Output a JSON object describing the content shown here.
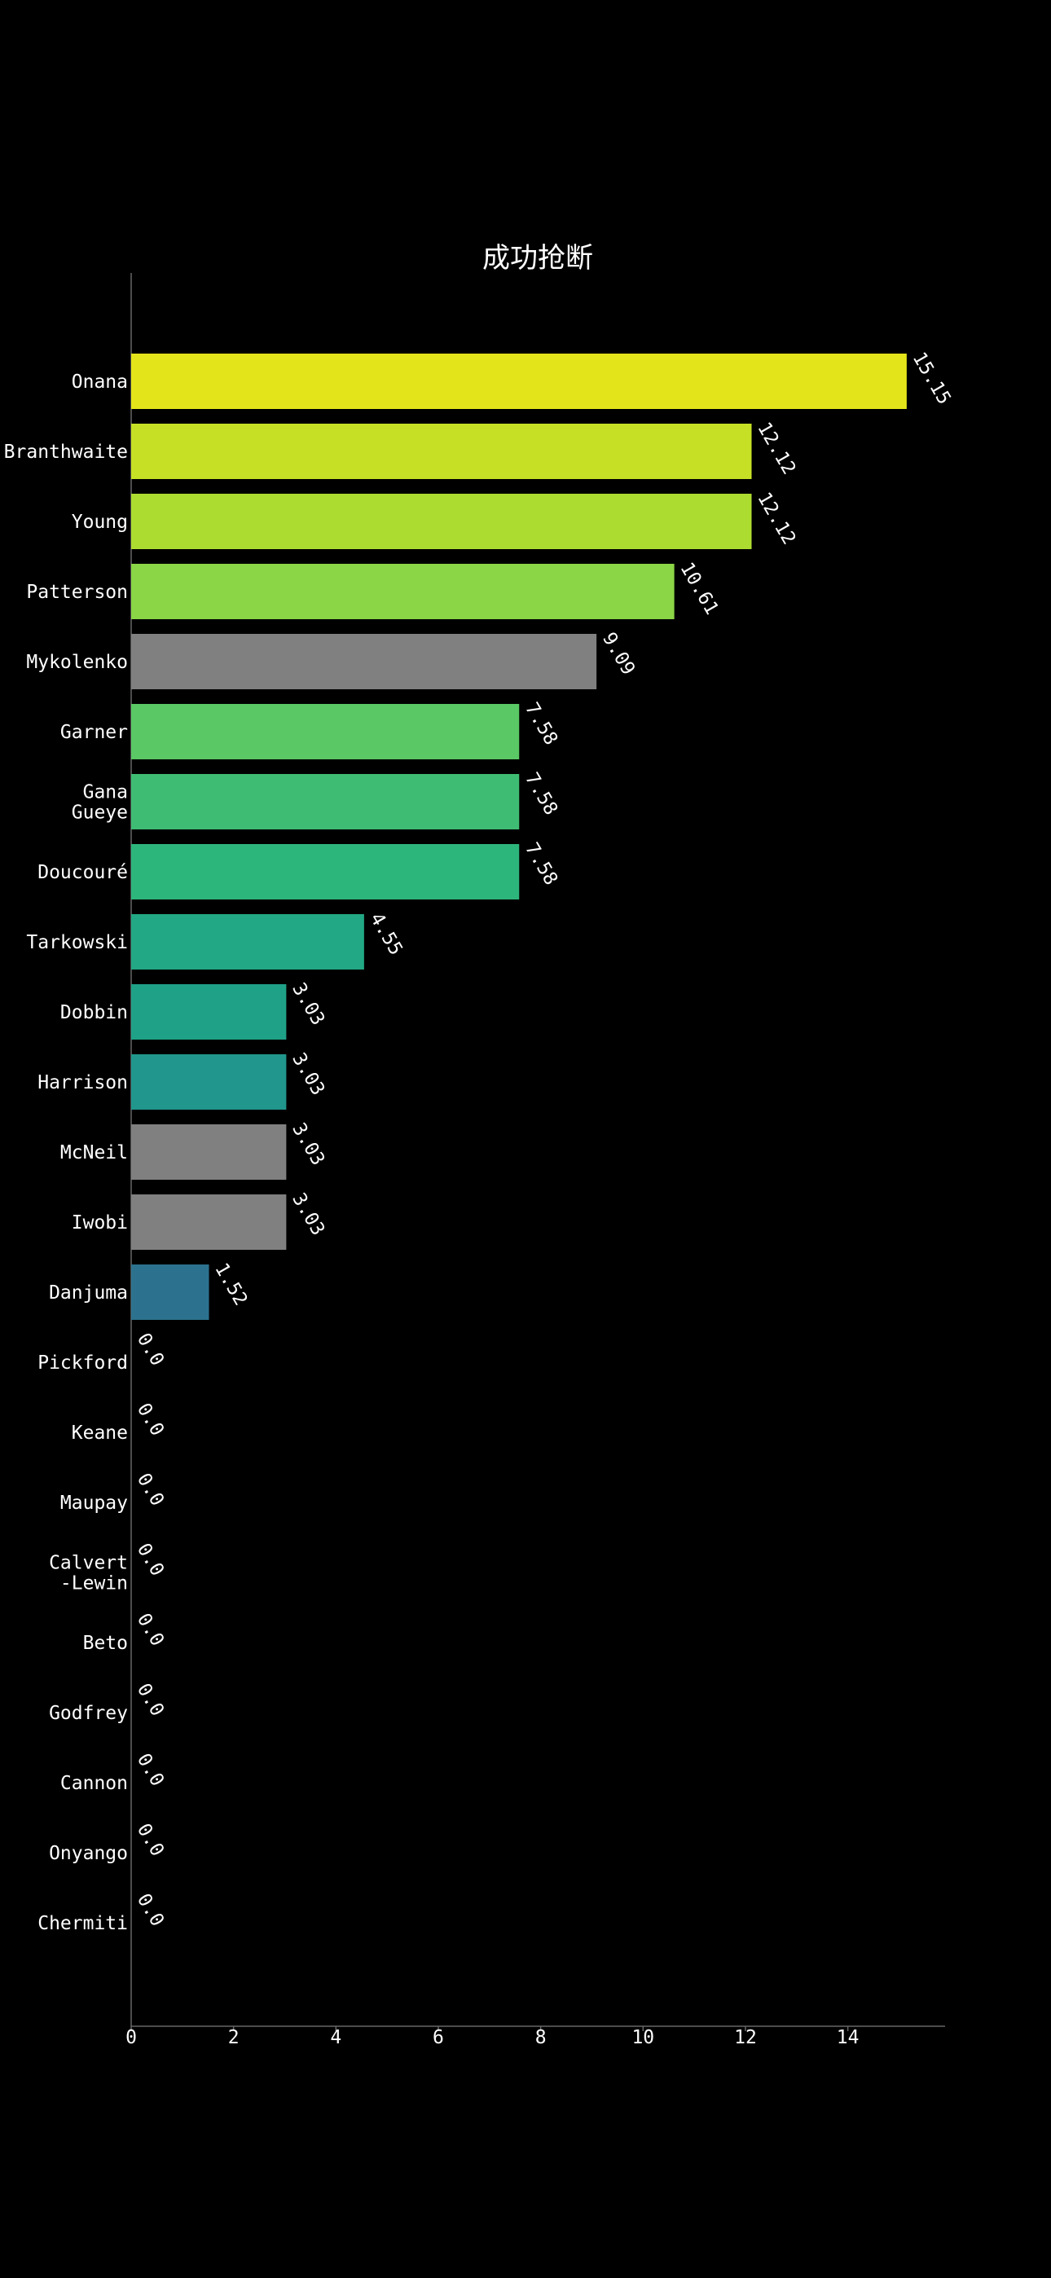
{
  "chart_data": {
    "type": "bar",
    "orientation": "horizontal",
    "title": "成功抢断",
    "xlabel": "",
    "ylabel": "",
    "xlim": [
      0,
      15.9
    ],
    "xticks": [
      0,
      2,
      4,
      6,
      8,
      10,
      12,
      14
    ],
    "grid": false,
    "legend": "none",
    "background": "#000000",
    "bars": [
      {
        "label": [
          "Onana"
        ],
        "value": 15.15,
        "value_label": "15.15",
        "color": "#e4e41a"
      },
      {
        "label": [
          "Branthwaite"
        ],
        "value": 12.12,
        "value_label": "12.12",
        "color": "#c6e125"
      },
      {
        "label": [
          "Young"
        ],
        "value": 12.12,
        "value_label": "12.12",
        "color": "#addc30"
      },
      {
        "label": [
          "Patterson"
        ],
        "value": 10.61,
        "value_label": "10.61",
        "color": "#8bd646"
      },
      {
        "label": [
          "Mykolenko"
        ],
        "value": 9.09,
        "value_label": "9.09",
        "color": "#808080"
      },
      {
        "label": [
          "Garner"
        ],
        "value": 7.58,
        "value_label": "7.58",
        "color": "#5ac864"
      },
      {
        "label": [
          "Gana",
          "Gueye"
        ],
        "value": 7.58,
        "value_label": "7.58",
        "color": "#3fbc73"
      },
      {
        "label": [
          "Doucouré"
        ],
        "value": 7.58,
        "value_label": "7.58",
        "color": "#2db67c"
      },
      {
        "label": [
          "Tarkowski"
        ],
        "value": 4.55,
        "value_label": "4.55",
        "color": "#22a884"
      },
      {
        "label": [
          "Dobbin"
        ],
        "value": 3.03,
        "value_label": "3.03",
        "color": "#1fa187"
      },
      {
        "label": [
          "Harrison"
        ],
        "value": 3.03,
        "value_label": "3.03",
        "color": "#21968c"
      },
      {
        "label": [
          "McNeil"
        ],
        "value": 3.03,
        "value_label": "3.03",
        "color": "#808080"
      },
      {
        "label": [
          "Iwobi"
        ],
        "value": 3.03,
        "value_label": "3.03",
        "color": "#808080"
      },
      {
        "label": [
          "Danjuma"
        ],
        "value": 1.52,
        "value_label": "1.52",
        "color": "#2c728e"
      },
      {
        "label": [
          "Pickford"
        ],
        "value": 0.0,
        "value_label": "0.0",
        "color": "#3b528b"
      },
      {
        "label": [
          "Keane"
        ],
        "value": 0.0,
        "value_label": "0.0",
        "color": "#414487"
      },
      {
        "label": [
          "Maupay"
        ],
        "value": 0.0,
        "value_label": "0.0",
        "color": "#482878"
      },
      {
        "label": [
          "Calvert",
          "-Lewin"
        ],
        "value": 0.0,
        "value_label": "0.0",
        "color": "#471063"
      },
      {
        "label": [
          "Beto"
        ],
        "value": 0.0,
        "value_label": "0.0",
        "color": "#440154"
      },
      {
        "label": [
          "Godfrey"
        ],
        "value": 0.0,
        "value_label": "0.0",
        "color": "#440154"
      },
      {
        "label": [
          "Cannon"
        ],
        "value": 0.0,
        "value_label": "0.0",
        "color": "#440154"
      },
      {
        "label": [
          "Onyango"
        ],
        "value": 0.0,
        "value_label": "0.0",
        "color": "#440154"
      },
      {
        "label": [
          "Chermiti"
        ],
        "value": 0.0,
        "value_label": "0.0",
        "color": "#440154"
      }
    ]
  }
}
